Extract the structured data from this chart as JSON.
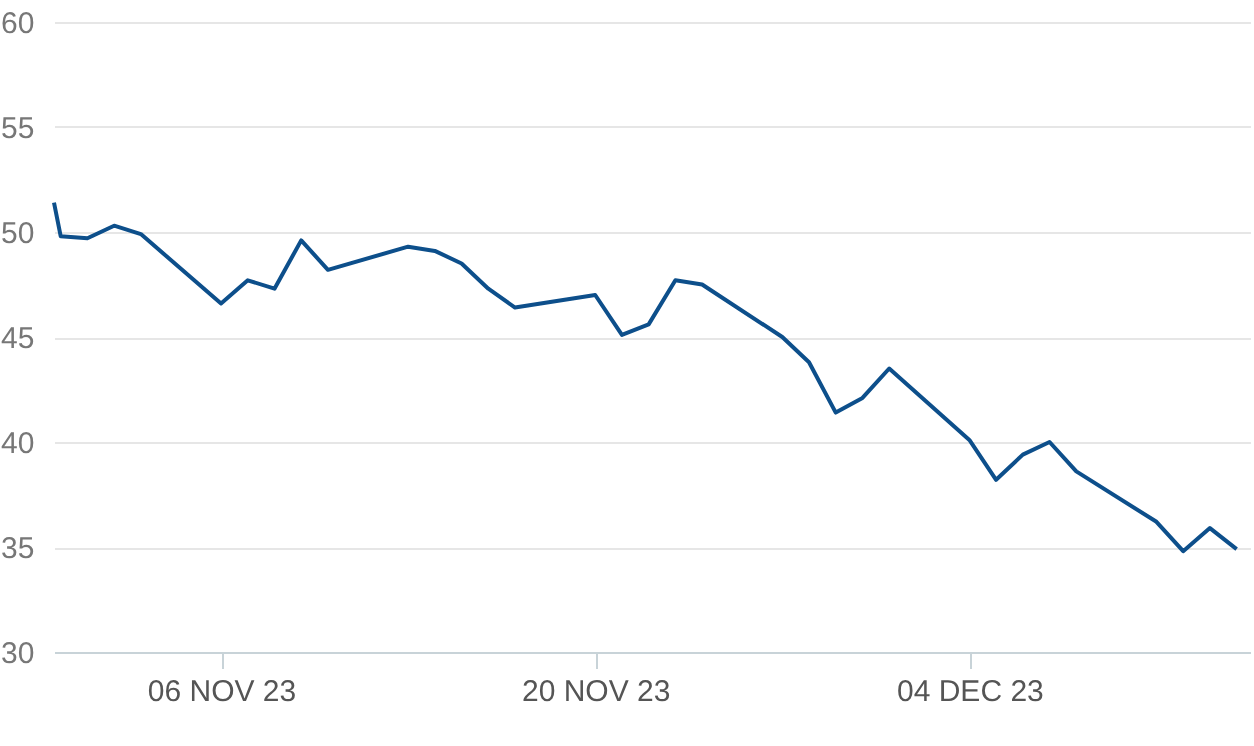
{
  "chart_data": {
    "type": "line",
    "x": [
      "2023-10-30T18:00",
      "2023-10-31",
      "2023-11-01",
      "2023-11-02",
      "2023-11-03",
      "2023-11-06",
      "2023-11-07",
      "2023-11-08",
      "2023-11-09",
      "2023-11-10",
      "2023-11-13",
      "2023-11-14",
      "2023-11-15",
      "2023-11-16",
      "2023-11-17",
      "2023-11-20",
      "2023-11-21",
      "2023-11-22",
      "2023-11-23",
      "2023-11-24",
      "2023-11-27",
      "2023-11-28",
      "2023-11-29",
      "2023-11-30",
      "2023-12-01",
      "2023-12-04",
      "2023-12-05",
      "2023-12-06",
      "2023-12-07",
      "2023-12-08",
      "2023-12-11",
      "2023-12-12",
      "2023-12-13",
      "2023-12-14"
    ],
    "series": [
      {
        "color": "#0d4f8b",
        "values": [
          51.4,
          49.8,
          49.7,
          50.3,
          49.9,
          46.6,
          47.7,
          47.3,
          49.6,
          48.2,
          49.3,
          49.1,
          48.5,
          47.3,
          46.4,
          47.0,
          45.1,
          45.6,
          47.7,
          47.5,
          45.0,
          43.8,
          41.4,
          42.1,
          43.5,
          40.1,
          38.2,
          39.4,
          40.0,
          38.6,
          36.2,
          34.8,
          35.9,
          34.9
        ]
      }
    ],
    "xlim": [
      "2023-10-30T18:00",
      "2023-12-14T12:00"
    ],
    "xticks": [
      {
        "value": "2023-11-06",
        "label": "06 NOV 23"
      },
      {
        "value": "2023-11-20",
        "label": "20 NOV 23"
      },
      {
        "value": "2023-12-04",
        "label": "04 DEC 23"
      }
    ],
    "ylim": [
      30,
      60
    ],
    "yticks": [
      30,
      35,
      40,
      45,
      50,
      55,
      60
    ],
    "grid": "y",
    "marker": "none",
    "line_style": "solid"
  }
}
